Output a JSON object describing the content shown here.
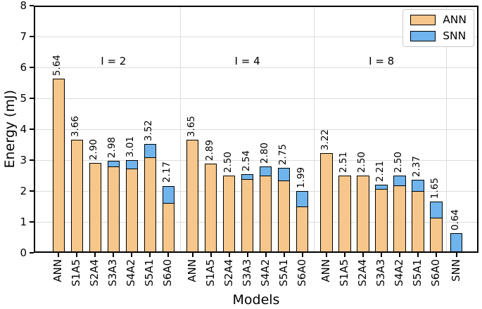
{
  "chart_data": {
    "type": "bar",
    "stacked": true,
    "title": "",
    "xlabel": "Models",
    "ylabel": "Energy (mJ)",
    "ylim": [
      0,
      8
    ],
    "yticks": [
      "0",
      "1",
      "2",
      "3",
      "4",
      "5",
      "6",
      "7",
      "8"
    ],
    "grid": true,
    "legend": {
      "position": "upper right",
      "entries": [
        {
          "label": "ANN",
          "color": "#F6C68A"
        },
        {
          "label": "SNN",
          "color": "#6FB4EC"
        }
      ]
    },
    "colors": {
      "ann_fill": "#F6C68A",
      "snn_fill": "#6FB4EC",
      "bar_edge": "#000000",
      "grid_color": "#DCDCDC"
    },
    "groups": [
      {
        "label": "I = 2",
        "bars": [
          {
            "model": "ANN",
            "value": 5.64,
            "value_label": "5.64",
            "ann": 5.64,
            "snn": 0
          },
          {
            "model": "S1A5",
            "value": 3.66,
            "value_label": "3.66",
            "ann": 3.66,
            "snn": 0
          },
          {
            "model": "S2A4",
            "value": 2.9,
            "value_label": "2.90",
            "ann": 2.9,
            "snn": 0
          },
          {
            "model": "S3A3",
            "value": 2.98,
            "value_label": "2.98",
            "ann": 2.81,
            "snn": 0.17
          },
          {
            "model": "S4A2",
            "value": 3.01,
            "value_label": "3.01",
            "ann": 2.74,
            "snn": 0.27
          },
          {
            "model": "S5A1",
            "value": 3.52,
            "value_label": "3.52",
            "ann": 3.11,
            "snn": 0.41
          },
          {
            "model": "S6A0",
            "value": 2.17,
            "value_label": "2.17",
            "ann": 1.62,
            "snn": 0.55
          }
        ]
      },
      {
        "label": "I = 4",
        "bars": [
          {
            "model": "ANN",
            "value": 3.65,
            "value_label": "3.65",
            "ann": 3.65,
            "snn": 0
          },
          {
            "model": "S1A5",
            "value": 2.89,
            "value_label": "2.89",
            "ann": 2.89,
            "snn": 0
          },
          {
            "model": "S2A4",
            "value": 2.5,
            "value_label": "2.50",
            "ann": 2.5,
            "snn": 0
          },
          {
            "model": "S3A3",
            "value": 2.54,
            "value_label": "2.54",
            "ann": 2.4,
            "snn": 0.14
          },
          {
            "model": "S4A2",
            "value": 2.8,
            "value_label": "2.80",
            "ann": 2.5,
            "snn": 0.3
          },
          {
            "model": "S5A1",
            "value": 2.75,
            "value_label": "2.75",
            "ann": 2.35,
            "snn": 0.4
          },
          {
            "model": "S6A0",
            "value": 1.99,
            "value_label": "1.99",
            "ann": 1.5,
            "snn": 0.49
          }
        ]
      },
      {
        "label": "I = 8",
        "bars": [
          {
            "model": "ANN",
            "value": 3.22,
            "value_label": "3.22",
            "ann": 3.22,
            "snn": 0
          },
          {
            "model": "S1A5",
            "value": 2.51,
            "value_label": "2.51",
            "ann": 2.51,
            "snn": 0
          },
          {
            "model": "S2A4",
            "value": 2.5,
            "value_label": "2.50",
            "ann": 2.5,
            "snn": 0
          },
          {
            "model": "S3A3",
            "value": 2.21,
            "value_label": "2.21",
            "ann": 2.08,
            "snn": 0.13
          },
          {
            "model": "S4A2",
            "value": 2.5,
            "value_label": "2.50",
            "ann": 2.2,
            "snn": 0.3
          },
          {
            "model": "S5A1",
            "value": 2.37,
            "value_label": "2.37",
            "ann": 2.0,
            "snn": 0.37
          },
          {
            "model": "S6A0",
            "value": 1.65,
            "value_label": "1.65",
            "ann": 1.15,
            "snn": 0.5
          }
        ]
      },
      {
        "label": "",
        "bars": [
          {
            "model": "SNN",
            "value": 0.64,
            "value_label": "0.64",
            "ann": 0,
            "snn": 0.64
          }
        ]
      }
    ]
  }
}
